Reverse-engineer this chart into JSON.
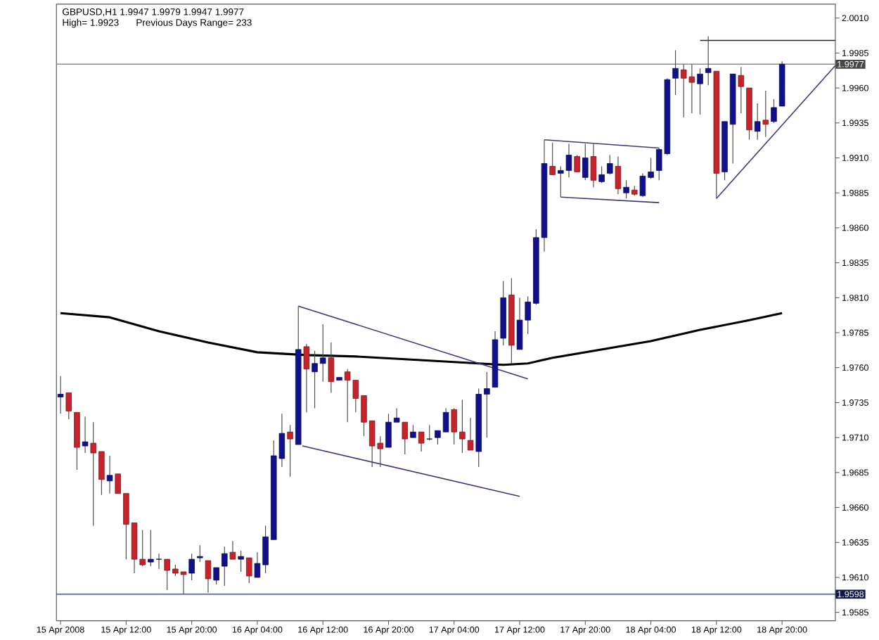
{
  "chart_data": {
    "type": "candlestick",
    "title": "GBPUSD,H1 1.9947 1.9979 1.9947 1.9977",
    "subtitle": "High= 1.9923",
    "annotations": [
      "Previous Days Range= 233"
    ],
    "x": [
      "2008-04-15T04:00",
      "2008-04-15T05:00",
      "2008-04-15T06:00",
      "2008-04-15T07:00",
      "2008-04-15T08:00",
      "2008-04-15T09:00",
      "2008-04-15T10:00",
      "2008-04-15T11:00",
      "2008-04-15T12:00",
      "2008-04-15T13:00",
      "2008-04-15T14:00",
      "2008-04-15T15:00",
      "2008-04-15T16:00",
      "2008-04-15T17:00",
      "2008-04-15T18:00",
      "2008-04-15T19:00",
      "2008-04-15T20:00",
      "2008-04-15T21:00",
      "2008-04-15T22:00",
      "2008-04-15T23:00",
      "2008-04-16T00:00",
      "2008-04-16T01:00",
      "2008-04-16T02:00",
      "2008-04-16T03:00",
      "2008-04-16T04:00",
      "2008-04-16T05:00",
      "2008-04-16T06:00",
      "2008-04-16T07:00",
      "2008-04-16T08:00",
      "2008-04-16T09:00",
      "2008-04-16T10:00",
      "2008-04-16T11:00",
      "2008-04-16T12:00",
      "2008-04-16T13:00",
      "2008-04-16T14:00",
      "2008-04-16T15:00",
      "2008-04-16T16:00",
      "2008-04-16T17:00",
      "2008-04-16T18:00",
      "2008-04-16T19:00",
      "2008-04-16T20:00",
      "2008-04-16T21:00",
      "2008-04-16T22:00",
      "2008-04-16T23:00",
      "2008-04-17T00:00",
      "2008-04-17T01:00",
      "2008-04-17T02:00",
      "2008-04-17T03:00",
      "2008-04-17T04:00",
      "2008-04-17T05:00",
      "2008-04-17T06:00",
      "2008-04-17T07:00",
      "2008-04-17T08:00",
      "2008-04-17T09:00",
      "2008-04-17T10:00",
      "2008-04-17T11:00",
      "2008-04-17T12:00",
      "2008-04-17T13:00",
      "2008-04-17T14:00",
      "2008-04-17T15:00",
      "2008-04-17T16:00",
      "2008-04-17T17:00",
      "2008-04-17T18:00",
      "2008-04-17T19:00",
      "2008-04-17T20:00",
      "2008-04-17T21:00",
      "2008-04-17T22:00",
      "2008-04-17T23:00",
      "2008-04-18T00:00",
      "2008-04-18T01:00",
      "2008-04-18T02:00",
      "2008-04-18T03:00",
      "2008-04-18T04:00",
      "2008-04-18T05:00",
      "2008-04-18T06:00",
      "2008-04-18T07:00",
      "2008-04-18T08:00",
      "2008-04-18T09:00",
      "2008-04-18T10:00",
      "2008-04-18T11:00",
      "2008-04-18T12:00",
      "2008-04-18T13:00",
      "2008-04-18T14:00",
      "2008-04-18T15:00",
      "2008-04-18T16:00",
      "2008-04-18T17:00",
      "2008-04-18T18:00",
      "2008-04-18T19:00",
      "2008-04-18T20:00"
    ],
    "ohlc": [
      [
        1.9739,
        1.9754,
        1.9727,
        1.9741
      ],
      [
        1.9742,
        1.9742,
        1.9723,
        1.9729
      ],
      [
        1.9728,
        1.9728,
        1.9687,
        1.9703
      ],
      [
        1.9704,
        1.9725,
        1.9699,
        1.9707
      ],
      [
        1.9706,
        1.9721,
        1.9647,
        1.9699
      ],
      [
        1.97,
        1.97,
        1.9669,
        1.968
      ],
      [
        1.9679,
        1.9697,
        1.967,
        1.9683
      ],
      [
        1.9684,
        1.9684,
        1.967,
        1.967
      ],
      [
        1.967,
        1.967,
        1.9623,
        1.9648
      ],
      [
        1.9649,
        1.9649,
        1.9613,
        1.9623
      ],
      [
        1.9623,
        1.9644,
        1.9618,
        1.9619
      ],
      [
        1.9621,
        1.9644,
        1.9618,
        1.9623
      ],
      [
        1.9623,
        1.9627,
        1.9616,
        1.9623
      ],
      [
        1.9623,
        1.9623,
        1.9601,
        1.9615
      ],
      [
        1.9616,
        1.9619,
        1.9611,
        1.9613
      ],
      [
        1.9614,
        1.9614,
        1.9598,
        1.9612
      ],
      [
        1.9613,
        1.9627,
        1.9608,
        1.9623
      ],
      [
        1.9624,
        1.9633,
        1.9621,
        1.9625
      ],
      [
        1.9622,
        1.9622,
        1.9599,
        1.9609
      ],
      [
        1.9608,
        1.9617,
        1.9605,
        1.9617
      ],
      [
        1.9618,
        1.9632,
        1.9604,
        1.9627
      ],
      [
        1.9628,
        1.9636,
        1.9623,
        1.9623
      ],
      [
        1.9623,
        1.9629,
        1.9614,
        1.9625
      ],
      [
        1.9624,
        1.9624,
        1.9606,
        1.9611
      ],
      [
        1.961,
        1.9628,
        1.961,
        1.962
      ],
      [
        1.9619,
        1.9647,
        1.9613,
        1.9639
      ],
      [
        1.9637,
        1.9708,
        1.9637,
        1.9697
      ],
      [
        1.9695,
        1.9727,
        1.9689,
        1.9713
      ],
      [
        1.9714,
        1.9719,
        1.9682,
        1.9709
      ],
      [
        1.9705,
        1.9804,
        1.9705,
        1.9773
      ],
      [
        1.9775,
        1.9777,
        1.9728,
        1.9759
      ],
      [
        1.9757,
        1.9772,
        1.9731,
        1.9763
      ],
      [
        1.9763,
        1.9791,
        1.975,
        1.9767
      ],
      [
        1.9767,
        1.9778,
        1.9742,
        1.975
      ],
      [
        1.9751,
        1.9753,
        1.9751,
        1.9753
      ],
      [
        1.9757,
        1.9759,
        1.9721,
        1.9751
      ],
      [
        1.9751,
        1.9751,
        1.9728,
        1.9738
      ],
      [
        1.974,
        1.974,
        1.9711,
        1.9721
      ],
      [
        1.9722,
        1.9722,
        1.9689,
        1.9704
      ],
      [
        1.9706,
        1.9711,
        1.9689,
        1.9702
      ],
      [
        1.9703,
        1.9727,
        1.9703,
        1.9721
      ],
      [
        1.9721,
        1.9731,
        1.9721,
        1.9724
      ],
      [
        1.9721,
        1.9721,
        1.9698,
        1.9709
      ],
      [
        1.971,
        1.9719,
        1.971,
        1.9714
      ],
      [
        1.9714,
        1.9714,
        1.97,
        1.9706
      ],
      [
        1.9709,
        1.9719,
        1.9708,
        1.9709
      ],
      [
        1.971,
        1.9715,
        1.9705,
        1.9715
      ],
      [
        1.9714,
        1.9731,
        1.9714,
        1.9728
      ],
      [
        1.973,
        1.9731,
        1.9705,
        1.9714
      ],
      [
        1.9714,
        1.9737,
        1.9699,
        1.9709
      ],
      [
        1.9708,
        1.9724,
        1.9701,
        1.9701
      ],
      [
        1.97,
        1.9745,
        1.9689,
        1.9741
      ],
      [
        1.9741,
        1.9757,
        1.971,
        1.9745
      ],
      [
        1.9746,
        1.9786,
        1.9746,
        1.978
      ],
      [
        1.9781,
        1.9822,
        1.9776,
        1.981
      ],
      [
        1.9812,
        1.9824,
        1.9763,
        1.9776
      ],
      [
        1.9773,
        1.981,
        1.9773,
        1.9794
      ],
      [
        1.9794,
        1.9811,
        1.9784,
        1.9807
      ],
      [
        1.9806,
        1.9859,
        1.9805,
        1.9853
      ],
      [
        1.9853,
        1.9923,
        1.9843,
        1.9906
      ],
      [
        1.9904,
        1.9921,
        1.9898,
        1.9898
      ],
      [
        1.9899,
        1.9904,
        1.9882,
        1.9901
      ],
      [
        1.9901,
        1.992,
        1.9896,
        1.9912
      ],
      [
        1.9911,
        1.9912,
        1.99,
        1.99
      ],
      [
        1.9896,
        1.992,
        1.9894,
        1.991
      ],
      [
        1.9911,
        1.992,
        1.9889,
        1.9894
      ],
      [
        1.9893,
        1.9904,
        1.9892,
        1.9898
      ],
      [
        1.9899,
        1.9912,
        1.9898,
        1.9906
      ],
      [
        1.9904,
        1.9911,
        1.9884,
        1.9888
      ],
      [
        1.9885,
        1.9894,
        1.9881,
        1.9889
      ],
      [
        1.9887,
        1.989,
        1.9883,
        1.9884
      ],
      [
        1.9883,
        1.9899,
        1.9882,
        1.9897
      ],
      [
        1.9896,
        1.991,
        1.9895,
        1.99
      ],
      [
        1.9901,
        1.9917,
        1.9894,
        1.9916
      ],
      [
        1.9913,
        1.9967,
        1.9912,
        1.9966
      ],
      [
        1.9967,
        1.9987,
        1.9955,
        1.9974
      ],
      [
        1.9973,
        1.9977,
        1.9939,
        1.9967
      ],
      [
        1.9968,
        1.9977,
        1.9942,
        1.9964
      ],
      [
        1.9963,
        1.9974,
        1.9941,
        1.997
      ],
      [
        1.9971,
        1.9997,
        1.9962,
        1.9974
      ],
      [
        1.9972,
        1.9972,
        1.9881,
        1.9899
      ],
      [
        1.99,
        1.9936,
        1.9894,
        1.9936
      ],
      [
        1.9934,
        1.997,
        1.9906,
        1.997
      ],
      [
        1.9969,
        1.9975,
        1.9942,
        1.9961
      ],
      [
        1.996,
        1.996,
        1.9923,
        1.993
      ],
      [
        1.9929,
        1.9949,
        1.9923,
        1.9936
      ],
      [
        1.9937,
        1.9958,
        1.9925,
        1.9934
      ],
      [
        1.9936,
        1.9952,
        1.9935,
        1.9946
      ],
      [
        1.9947,
        1.9979,
        1.9947,
        1.9977
      ]
    ],
    "colors": [
      "#10108c",
      "#c8232b",
      "#c8232b",
      "#10108c",
      "#c8232b",
      "#c8232b",
      "#10108c",
      "#c8232b",
      "#c8232b",
      "#c8232b",
      "#c8232b",
      "#10108c",
      "#000000",
      "#c8232b",
      "#c8232b",
      "#c8232b",
      "#10108c",
      "#10108c",
      "#c8232b",
      "#10108c",
      "#10108c",
      "#c8232b",
      "#10108c",
      "#c8232b",
      "#10108c",
      "#10108c",
      "#10108c",
      "#10108c",
      "#c8232b",
      "#10108c",
      "#c8232b",
      "#10108c",
      "#10108c",
      "#c8232b",
      "#10108c",
      "#c8232b",
      "#c8232b",
      "#c8232b",
      "#c8232b",
      "#c8232b",
      "#10108c",
      "#10108c",
      "#c8232b",
      "#10108c",
      "#c8232b",
      "#000000",
      "#10108c",
      "#10108c",
      "#c8232b",
      "#c8232b",
      "#c8232b",
      "#10108c",
      "#10108c",
      "#10108c",
      "#10108c",
      "#c8232b",
      "#10108c",
      "#10108c",
      "#10108c",
      "#10108c",
      "#c8232b",
      "#10108c",
      "#10108c",
      "#c8232b",
      "#10108c",
      "#c8232b",
      "#10108c",
      "#10108c",
      "#c8232b",
      "#10108c",
      "#c8232b",
      "#10108c",
      "#10108c",
      "#10108c",
      "#10108c",
      "#10108c",
      "#c8232b",
      "#c8232b",
      "#10108c",
      "#10108c",
      "#c8232b",
      "#10108c",
      "#10108c",
      "#c8232b",
      "#c8232b",
      "#10108c",
      "#c8232b",
      "#10108c",
      "#10108c"
    ],
    "series": [
      {
        "type": "line",
        "color": "#000000",
        "x": [
          "2008-04-15T04:00",
          "2008-04-15T10:00",
          "2008-04-15T16:00",
          "2008-04-15T22:00",
          "2008-04-16T04:00",
          "2008-04-16T10:00",
          "2008-04-16T16:00",
          "2008-04-16T22:00",
          "2008-04-17T04:00",
          "2008-04-17T10:00",
          "2008-04-17T13:00",
          "2008-04-17T16:00",
          "2008-04-17T22:00",
          "2008-04-18T04:00",
          "2008-04-18T10:00",
          "2008-04-18T16:00",
          "2008-04-18T20:00"
        ],
        "values": [
          1.9799,
          1.9796,
          1.9786,
          1.9778,
          1.9771,
          1.9769,
          1.9768,
          1.9766,
          1.9764,
          1.9762,
          1.9763,
          1.9767,
          1.9773,
          1.9779,
          1.9787,
          1.9794,
          1.9799
        ]
      },
      {
        "type": "line",
        "color": "#3a3a7a",
        "x": [
          "2008-04-16T09:00",
          "2008-04-17T13:00"
        ],
        "values": [
          1.9804,
          1.9752
        ]
      },
      {
        "type": "line",
        "color": "#3a3a7a",
        "x": [
          "2008-04-16T09:30",
          "2008-04-17T12:00"
        ],
        "values": [
          1.9704,
          1.9668
        ]
      },
      {
        "type": "line",
        "color": "#3a3a7a",
        "x": [
          "2008-04-17T15:00",
          "2008-04-18T05:00"
        ],
        "values": [
          1.9923,
          1.9917
        ]
      },
      {
        "type": "line",
        "color": "#3a3a7a",
        "x": [
          "2008-04-17T17:00",
          "2008-04-18T05:00"
        ],
        "values": [
          1.9882,
          1.9878
        ]
      },
      {
        "type": "line",
        "color": "#3a3a7a",
        "x": [
          "2008-04-18T12:00",
          "2008-04-19T02:30"
        ],
        "values": [
          1.9881,
          1.9976
        ]
      },
      {
        "type": "line",
        "color": "#20204a",
        "x": [
          "2008-04-18T10:00",
          "2008-04-19T02:30"
        ],
        "values": [
          1.9994,
          1.9994
        ]
      }
    ],
    "ref_lines": [
      {
        "axis": "y",
        "value": 1.9977,
        "label": "1.9977",
        "color": "#8c8c8c"
      },
      {
        "axis": "y",
        "value": 1.9598,
        "label": "1.9598",
        "color": "#1c2c8c"
      }
    ],
    "xlim": [
      "2008-04-15T03:30",
      "2008-04-19T02:30"
    ],
    "xticks": [
      {
        "value": "2008-04-15T04:00",
        "label": "15 Apr 2008"
      },
      {
        "value": "2008-04-15T12:00",
        "label": "15 Apr 12:00"
      },
      {
        "value": "2008-04-15T20:00",
        "label": "15 Apr 20:00"
      },
      {
        "value": "2008-04-16T04:00",
        "label": "16 Apr 04:00"
      },
      {
        "value": "2008-04-16T12:00",
        "label": "16 Apr 12:00"
      },
      {
        "value": "2008-04-16T20:00",
        "label": "16 Apr 20:00"
      },
      {
        "value": "2008-04-17T04:00",
        "label": "17 Apr 04:00"
      },
      {
        "value": "2008-04-17T12:00",
        "label": "17 Apr 12:00"
      },
      {
        "value": "2008-04-17T20:00",
        "label": "17 Apr 20:00"
      },
      {
        "value": "2008-04-18T04:00",
        "label": "18 Apr 04:00"
      },
      {
        "value": "2008-04-18T12:00",
        "label": "18 Apr 12:00"
      },
      {
        "value": "2008-04-18T20:00",
        "label": "18 Apr 20:00"
      }
    ],
    "ylim": [
      1.9579,
      2.002
    ],
    "yticks": [
      1.9585,
      {
        "value": 1.961,
        "label": "1.9610"
      },
      1.9635,
      {
        "value": 1.966,
        "label": "1.9660"
      },
      1.9685,
      {
        "value": 1.971,
        "label": "1.9710"
      },
      1.9735,
      {
        "value": 1.976,
        "label": "1.9760"
      },
      1.9785,
      {
        "value": 1.981,
        "label": "1.9810"
      },
      1.9835,
      {
        "value": 1.986,
        "label": "1.9860"
      },
      1.9885,
      {
        "value": 1.991,
        "label": "1.9910"
      },
      1.9935,
      {
        "value": 1.996,
        "label": "1.9960"
      },
      1.9985,
      {
        "value": 2.001,
        "label": "2.0010"
      }
    ]
  }
}
